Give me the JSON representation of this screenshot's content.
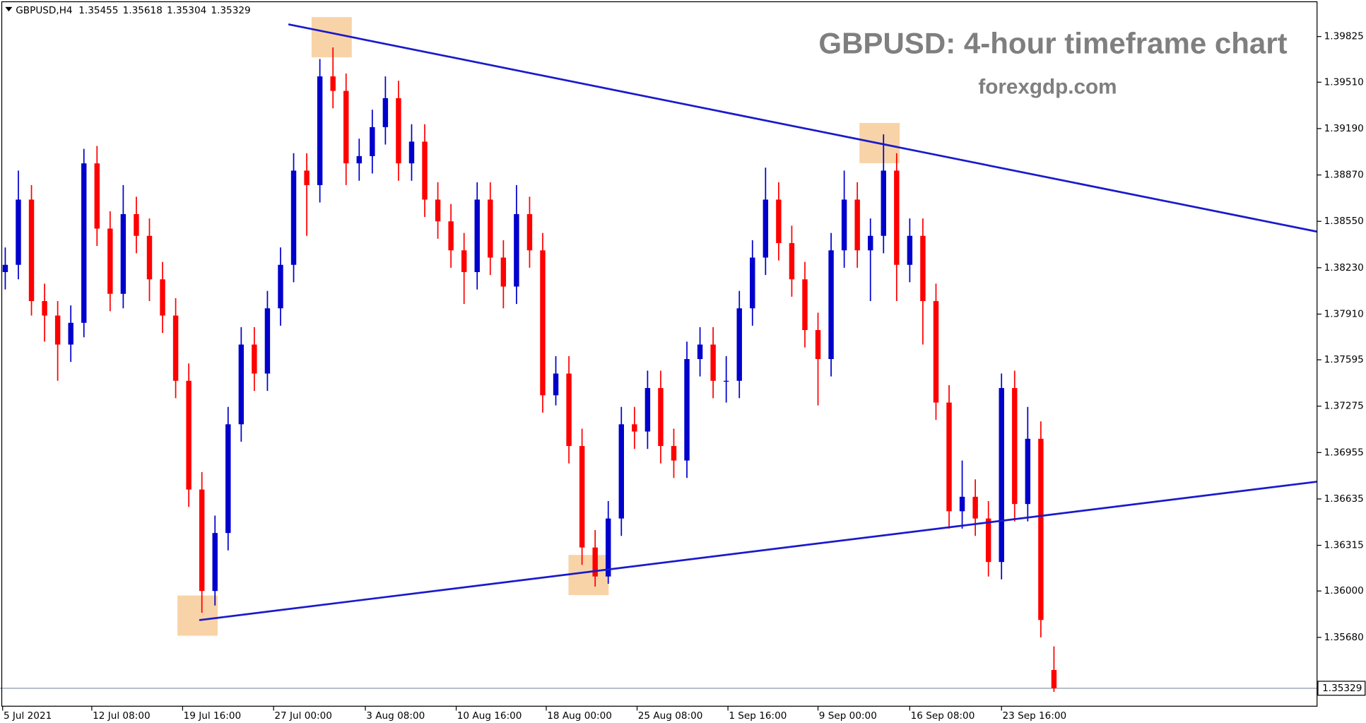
{
  "chart_data": {
    "type": "candlestick",
    "symbol": "GBPUSD,H4",
    "title": "GBPUSD: 4-hour timeframe chart",
    "subtitle": "forexgdp.com",
    "series": {
      "open": [
        1.382,
        1.3825,
        1.387,
        1.38,
        1.379,
        1.377,
        1.3785,
        1.3895,
        1.385,
        1.3805,
        1.386,
        1.3845,
        1.3815,
        1.379,
        1.3745,
        1.367,
        1.36,
        1.364,
        1.3715,
        1.377,
        1.375,
        1.3795,
        1.3825,
        1.389,
        1.388,
        1.3955,
        1.3945,
        1.3895,
        1.39,
        1.392,
        1.394,
        1.3895,
        1.391,
        1.387,
        1.3855,
        1.3835,
        1.382,
        1.387,
        1.383,
        1.381,
        1.386,
        1.3835,
        1.3735,
        1.375,
        1.37,
        1.363,
        1.361,
        1.365,
        1.3715,
        1.371,
        1.374,
        1.37,
        1.369,
        1.376,
        1.377,
        1.3745,
        1.3745,
        1.3795,
        1.383,
        1.387,
        1.384,
        1.3815,
        1.378,
        1.376,
        1.3835,
        1.387,
        1.3835,
        1.3845,
        1.389,
        1.3825,
        1.3845,
        1.38,
        1.373,
        1.3655,
        1.3665,
        1.365,
        1.362,
        1.374,
        1.366,
        1.3705,
        1.35455
      ],
      "high": [
        1.3837,
        1.389,
        1.388,
        1.3812,
        1.38,
        1.3797,
        1.3905,
        1.3907,
        1.3862,
        1.388,
        1.3872,
        1.3857,
        1.3827,
        1.3802,
        1.3757,
        1.3682,
        1.3652,
        1.3727,
        1.3782,
        1.3782,
        1.3807,
        1.3837,
        1.3902,
        1.3902,
        1.3967,
        1.3975,
        1.3957,
        1.3912,
        1.3932,
        1.3955,
        1.3952,
        1.3922,
        1.3922,
        1.3882,
        1.3867,
        1.3847,
        1.3882,
        1.3882,
        1.3842,
        1.388,
        1.3872,
        1.3847,
        1.3762,
        1.3762,
        1.3712,
        1.3642,
        1.3662,
        1.3727,
        1.3727,
        1.3752,
        1.3752,
        1.3712,
        1.3772,
        1.3782,
        1.3782,
        1.3762,
        1.3807,
        1.3842,
        1.3892,
        1.3882,
        1.3852,
        1.3827,
        1.3792,
        1.3847,
        1.389,
        1.3882,
        1.3857,
        1.3915,
        1.3902,
        1.3857,
        1.3857,
        1.3812,
        1.3742,
        1.369,
        1.3677,
        1.3662,
        1.375,
        1.3752,
        1.3727,
        1.3717,
        1.35618
      ],
      "low": [
        1.3808,
        1.3815,
        1.379,
        1.3772,
        1.3745,
        1.3758,
        1.3775,
        1.3838,
        1.3793,
        1.3795,
        1.3833,
        1.38,
        1.3778,
        1.3733,
        1.3658,
        1.3585,
        1.359,
        1.3628,
        1.3703,
        1.3738,
        1.3738,
        1.3783,
        1.3813,
        1.3845,
        1.3868,
        1.3933,
        1.388,
        1.3883,
        1.3888,
        1.3908,
        1.3883,
        1.3883,
        1.3858,
        1.3843,
        1.3823,
        1.3798,
        1.3808,
        1.3818,
        1.3795,
        1.3798,
        1.3823,
        1.3723,
        1.3728,
        1.3688,
        1.3618,
        1.3603,
        1.3605,
        1.3638,
        1.3698,
        1.3698,
        1.3688,
        1.3678,
        1.3678,
        1.3748,
        1.3733,
        1.373,
        1.3733,
        1.3783,
        1.3818,
        1.3828,
        1.3803,
        1.3768,
        1.3728,
        1.3748,
        1.3823,
        1.3823,
        1.38,
        1.3833,
        1.38,
        1.3813,
        1.377,
        1.3718,
        1.3643,
        1.3643,
        1.3638,
        1.361,
        1.3608,
        1.3648,
        1.3648,
        1.3568,
        1.35304
      ],
      "close": [
        1.3825,
        1.387,
        1.38,
        1.379,
        1.377,
        1.3785,
        1.3895,
        1.385,
        1.3805,
        1.386,
        1.3845,
        1.3815,
        1.379,
        1.3745,
        1.367,
        1.36,
        1.364,
        1.3715,
        1.377,
        1.375,
        1.3795,
        1.3825,
        1.389,
        1.388,
        1.3955,
        1.3945,
        1.3895,
        1.39,
        1.392,
        1.394,
        1.3895,
        1.391,
        1.387,
        1.3855,
        1.3835,
        1.382,
        1.387,
        1.383,
        1.381,
        1.386,
        1.3835,
        1.3735,
        1.375,
        1.37,
        1.363,
        1.361,
        1.365,
        1.3715,
        1.371,
        1.374,
        1.37,
        1.369,
        1.376,
        1.377,
        1.3745,
        1.3745,
        1.3795,
        1.383,
        1.387,
        1.384,
        1.3815,
        1.378,
        1.376,
        1.3835,
        1.387,
        1.3835,
        1.3845,
        1.389,
        1.3825,
        1.3845,
        1.38,
        1.373,
        1.3655,
        1.3665,
        1.365,
        1.362,
        1.374,
        1.366,
        1.3705,
        1.358,
        1.35329
      ]
    },
    "up_color": "#0000cc",
    "down_color": "#ff0000",
    "trendlines": [
      {
        "x": [
          21.6,
          100.07
        ],
        "y": [
          1.39909,
          1.38479
        ],
        "color": "#1a1acc"
      },
      {
        "x": [
          14.8,
          100.07
        ],
        "y": [
          1.35799,
          1.36754
        ],
        "color": "#1a1acc"
      }
    ],
    "highlights": [
      {
        "x": 24.9,
        "y": 1.3982
      },
      {
        "x": 66.7,
        "y": 1.3909
      },
      {
        "x": 44.5,
        "y": 1.3611
      },
      {
        "x": 14.67,
        "y": 1.3583
      }
    ],
    "highlight_color": "#f5c48a",
    "xlim": [
      -0.4,
      100.07
    ],
    "ylim": [
      1.35205,
      1.40077
    ],
    "xticks": [
      {
        "value": -0.2,
        "label": "5 Jul 2021"
      },
      {
        "value": 6.6,
        "label": "12 Jul 08:00"
      },
      {
        "value": 13.53,
        "label": "19 Jul 16:00"
      },
      {
        "value": 20.47,
        "label": "27 Jul 00:00"
      },
      {
        "value": 27.47,
        "label": "3 Aug 08:00"
      },
      {
        "value": 34.4,
        "label": "10 Aug 16:00"
      },
      {
        "value": 41.27,
        "label": "18 Aug 00:00"
      },
      {
        "value": 48.2,
        "label": "25 Aug 08:00"
      },
      {
        "value": 55.13,
        "label": "1 Sep 16:00"
      },
      {
        "value": 62,
        "label": "9 Sep 00:00"
      },
      {
        "value": 69,
        "label": "16 Sep 08:00"
      },
      {
        "value": 76,
        "label": "23 Sep 16:00"
      }
    ],
    "yticks": [
      {
        "value": 1.3568,
        "label": "1.35680"
      },
      {
        "value": 1.36,
        "label": "1.36000"
      },
      1.36315,
      1.36635,
      1.36955,
      1.37275,
      1.37595,
      {
        "value": 1.3791,
        "label": "1.37910"
      },
      {
        "value": 1.3823,
        "label": "1.38230"
      },
      {
        "value": 1.3855,
        "label": "1.38550"
      },
      {
        "value": 1.3887,
        "label": "1.38870"
      },
      {
        "value": 1.3919,
        "label": "1.39190"
      },
      {
        "value": 1.3951,
        "label": "1.39510"
      },
      1.39825
    ],
    "grid": false
  }
}
